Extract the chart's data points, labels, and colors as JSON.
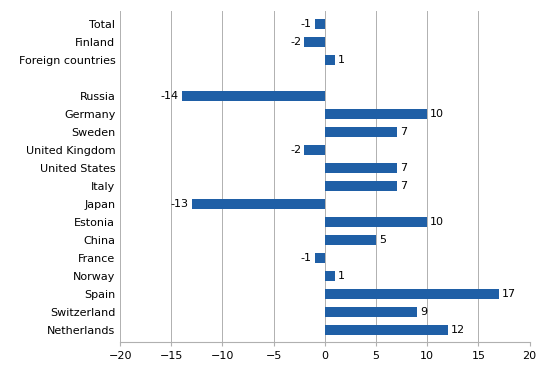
{
  "categories": [
    "Total",
    "Finland",
    "Foreign countries",
    "",
    "Russia",
    "Germany",
    "Sweden",
    "United Kingdom",
    "United States",
    "Italy",
    "Japan",
    "Estonia",
    "China",
    "France",
    "Norway",
    "Spain",
    "Switzerland",
    "Netherlands"
  ],
  "values": [
    -1,
    -2,
    1,
    null,
    -14,
    10,
    7,
    -2,
    7,
    7,
    -13,
    10,
    5,
    -1,
    1,
    17,
    9,
    12
  ],
  "bar_color": "#1F5FA6",
  "xlim": [
    -20,
    20
  ],
  "xticks": [
    -20,
    -15,
    -10,
    -5,
    0,
    5,
    10,
    15,
    20
  ],
  "grid_color": "#b0b0b0",
  "label_fontsize": 8,
  "tick_fontsize": 8,
  "bar_height": 0.55
}
